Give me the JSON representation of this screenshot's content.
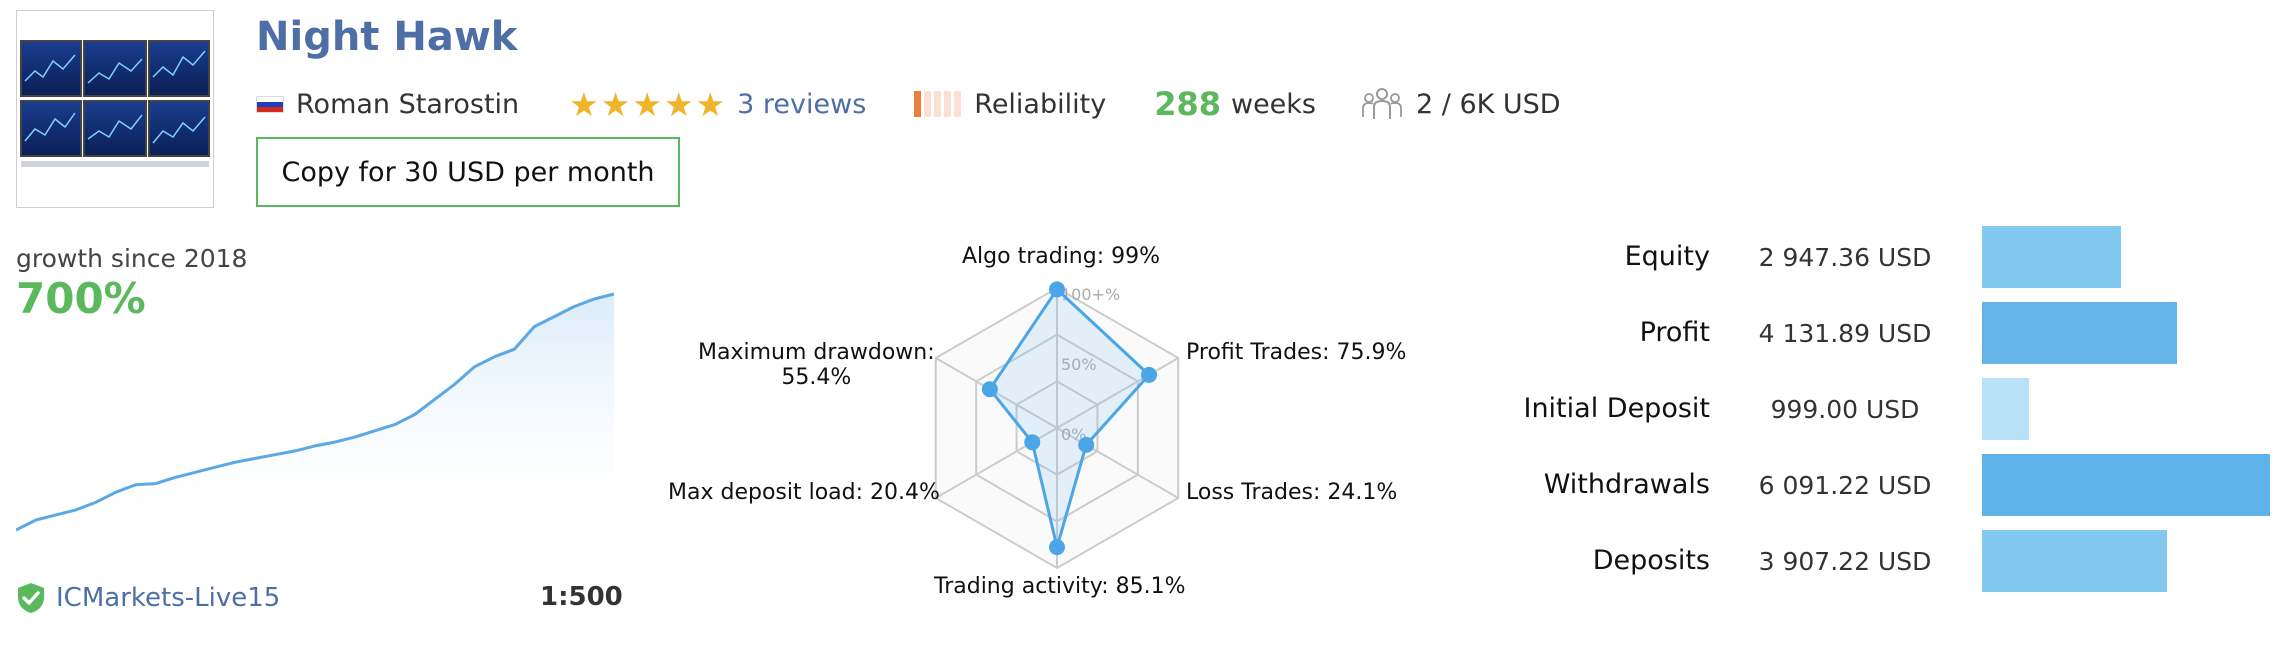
{
  "signal": {
    "title": "Night Hawk",
    "author": "Roman Starostin",
    "reviews": "3 reviews",
    "rating": 5,
    "reliability_label": "Reliability",
    "weeks_value": "288",
    "weeks_label": "weeks",
    "subscribers": "2 / 6K USD",
    "copy_button": "Copy for 30 USD per month"
  },
  "growth": {
    "label": "growth since 2018",
    "value": "700%",
    "server": "ICMarkets-Live15",
    "leverage": "1:500"
  },
  "radar": {
    "algo": "Algo trading: 99%",
    "profit_trades": "Profit Trades: 75.9%",
    "loss_trades": "Loss Trades: 24.1%",
    "trading_activity": "Trading activity: 85.1%",
    "max_deposit_load": "Max deposit load: 20.4%",
    "max_drawdown_l1": "Maximum drawdown:",
    "max_drawdown_l2": "55.4%",
    "scale_100": "100+%",
    "scale_50": "50%",
    "scale_0": "0%"
  },
  "balance": [
    {
      "label": "Equity",
      "value": "2 947.36 USD",
      "amount": 2947.36,
      "color": "#82c9f0"
    },
    {
      "label": "Profit",
      "value": "4 131.89 USD",
      "amount": 4131.89,
      "color": "#64b4ea"
    },
    {
      "label": "Initial Deposit",
      "value": "999.00 USD",
      "amount": 999.0,
      "color": "#b8e0f6"
    },
    {
      "label": "Withdrawals",
      "value": "6 091.22 USD",
      "amount": 6091.22,
      "color": "#5eb2ea"
    },
    {
      "label": "Deposits",
      "value": "3 907.22 USD",
      "amount": 3907.22,
      "color": "#82c9f0"
    }
  ],
  "chart_data": [
    {
      "type": "radar",
      "categories": [
        "Algo trading",
        "Profit Trades",
        "Loss Trades",
        "Trading activity",
        "Max deposit load",
        "Maximum drawdown"
      ],
      "values": [
        99,
        75.9,
        24.1,
        85.1,
        20.4,
        55.4
      ],
      "ylim": [
        0,
        100
      ],
      "grid": true
    },
    {
      "type": "bar",
      "orientation": "horizontal",
      "categories": [
        "Equity",
        "Profit",
        "Initial Deposit",
        "Withdrawals",
        "Deposits"
      ],
      "values": [
        2947.36,
        4131.89,
        999.0,
        6091.22,
        3907.22
      ]
    },
    {
      "type": "area",
      "title": "growth since 2018",
      "values": [
        0,
        8,
        12,
        16,
        22,
        30,
        36,
        37,
        42,
        46,
        50,
        54,
        57,
        60,
        63,
        67,
        70,
        74,
        79,
        84,
        92,
        104,
        116,
        130,
        138,
        144,
        162,
        170,
        178,
        184,
        188
      ]
    }
  ],
  "colors": {
    "accent_blue": "#4e6fa6",
    "green": "#5cb85c",
    "radar_line": "#4aa6e6"
  }
}
